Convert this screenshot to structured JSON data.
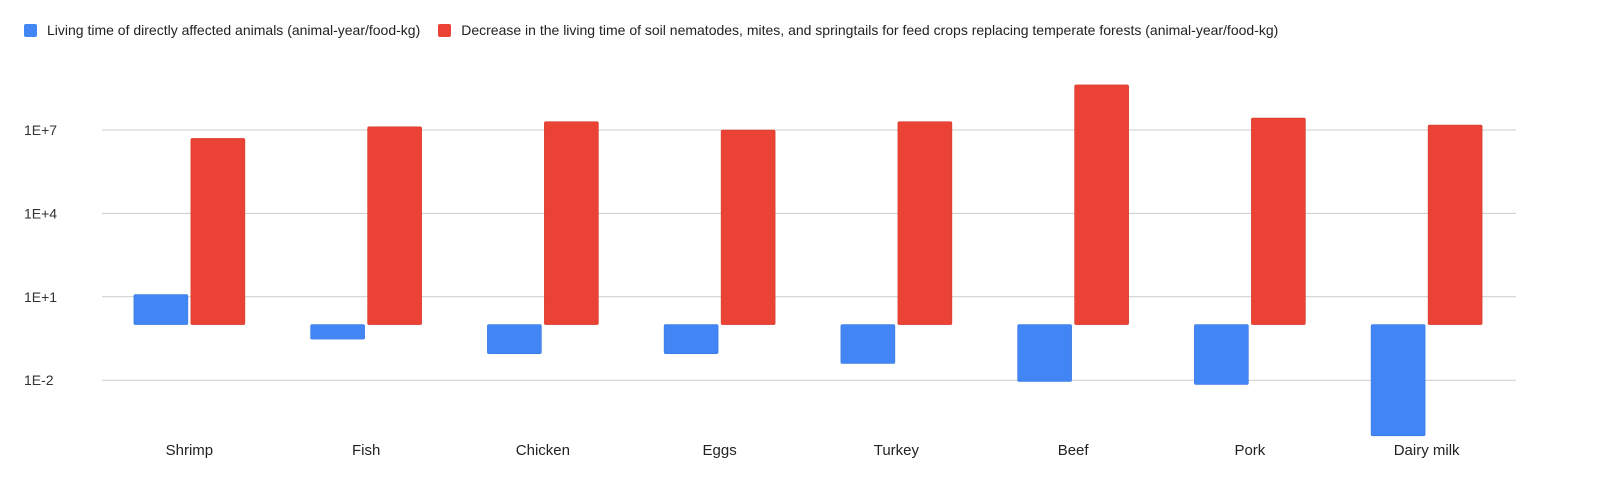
{
  "chart_data": {
    "type": "bar",
    "title": "",
    "xlabel": "",
    "ylabel": "",
    "y_scale": "log",
    "ylim": [
      0.0001,
      1000000000
    ],
    "yticks": [
      {
        "value": 0.01,
        "label": "1E-2"
      },
      {
        "value": 10,
        "label": "1E+1"
      },
      {
        "value": 10000,
        "label": "1E+4"
      },
      {
        "value": 10000000,
        "label": "1E+7"
      }
    ],
    "grid": true,
    "legend_position": "top-left",
    "categories": [
      "Shrimp",
      "Fish",
      "Chicken",
      "Eggs",
      "Turkey",
      "Beef",
      "Pork",
      "Dairy milk"
    ],
    "series": [
      {
        "name": "Living time of directly affected animals (animal-year/food-kg)",
        "color": "#4285f4",
        "values": [
          12,
          0.3,
          0.09,
          0.09,
          0.04,
          0.009,
          0.007,
          0.0001
        ]
      },
      {
        "name": "Decrease in the living time of soil nematodes, mites, and springtails for feed crops replacing temperate forests (animal-year/food-kg)",
        "color": "#ea4335",
        "values": [
          5000000,
          13000000,
          20000000,
          10000000,
          20000000,
          420000000,
          27000000,
          15000000
        ]
      }
    ]
  }
}
